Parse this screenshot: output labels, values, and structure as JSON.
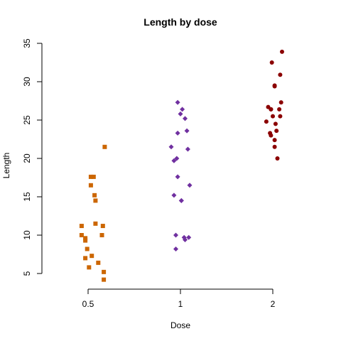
{
  "chart_data": {
    "type": "scatter",
    "title": "Length by dose",
    "xlabel": "Dose",
    "ylabel": "Length",
    "categories": [
      "0.5",
      "1",
      "2"
    ],
    "xlim": [
      0.5,
      3.5
    ],
    "ylim": [
      5,
      35
    ],
    "yticks": [
      5,
      10,
      15,
      20,
      25,
      30,
      35
    ],
    "grid": false,
    "legend": "none",
    "series": [
      {
        "category": "0.5",
        "color": "#CC6600",
        "marker": "square",
        "points": [
          {
            "x": 0.93,
            "y": 11.2
          },
          {
            "x": 1.18,
            "y": 21.5
          },
          {
            "x": 0.97,
            "y": 9.6
          },
          {
            "x": 1.17,
            "y": 4.2
          },
          {
            "x": 0.97,
            "y": 9.3
          },
          {
            "x": 1.11,
            "y": 6.4
          },
          {
            "x": 1.04,
            "y": 7.3
          },
          {
            "x": 1.01,
            "y": 5.8
          },
          {
            "x": 1.16,
            "y": 11.2
          },
          {
            "x": 1.15,
            "y": 10.0
          },
          {
            "x": 1.08,
            "y": 14.5
          },
          {
            "x": 0.93,
            "y": 10.0
          },
          {
            "x": 0.99,
            "y": 8.2
          },
          {
            "x": 1.03,
            "y": 17.6
          },
          {
            "x": 1.03,
            "y": 16.5
          },
          {
            "x": 1.07,
            "y": 15.2
          },
          {
            "x": 1.08,
            "y": 11.5
          },
          {
            "x": 1.06,
            "y": 17.6
          },
          {
            "x": 0.97,
            "y": 7.0
          },
          {
            "x": 1.17,
            "y": 5.2
          }
        ]
      },
      {
        "category": "1",
        "color": "#7030A0",
        "marker": "diamond",
        "points": [
          {
            "x": 1.93,
            "y": 15.2
          },
          {
            "x": 1.9,
            "y": 21.5
          },
          {
            "x": 1.97,
            "y": 17.6
          },
          {
            "x": 2.09,
            "y": 9.7
          },
          {
            "x": 2.01,
            "y": 14.5
          },
          {
            "x": 1.95,
            "y": 10.0
          },
          {
            "x": 1.95,
            "y": 8.2
          },
          {
            "x": 2.05,
            "y": 9.4
          },
          {
            "x": 2.1,
            "y": 16.5
          },
          {
            "x": 2.04,
            "y": 9.7
          },
          {
            "x": 1.93,
            "y": 19.7
          },
          {
            "x": 1.97,
            "y": 23.3
          },
          {
            "x": 2.07,
            "y": 23.6
          },
          {
            "x": 2.02,
            "y": 26.4
          },
          {
            "x": 1.96,
            "y": 20.0
          },
          {
            "x": 2.05,
            "y": 25.2
          },
          {
            "x": 2.0,
            "y": 25.8
          },
          {
            "x": 2.08,
            "y": 21.2
          },
          {
            "x": 2.01,
            "y": 14.5
          },
          {
            "x": 1.97,
            "y": 27.3
          }
        ]
      },
      {
        "category": "2",
        "color": "#8B0000",
        "marker": "circle",
        "points": [
          {
            "x": 3.08,
            "y": 25.5
          },
          {
            "x": 2.98,
            "y": 26.4
          },
          {
            "x": 3.02,
            "y": 22.4
          },
          {
            "x": 3.03,
            "y": 24.5
          },
          {
            "x": 2.93,
            "y": 24.8
          },
          {
            "x": 3.08,
            "y": 30.9
          },
          {
            "x": 3.07,
            "y": 26.4
          },
          {
            "x": 3.09,
            "y": 27.3
          },
          {
            "x": 3.02,
            "y": 29.4
          },
          {
            "x": 2.98,
            "y": 23.0
          },
          {
            "x": 3.04,
            "y": 23.6
          },
          {
            "x": 2.98,
            "y": 26.4
          },
          {
            "x": 3.05,
            "y": 20.0
          },
          {
            "x": 3.1,
            "y": 33.9
          },
          {
            "x": 2.99,
            "y": 32.5
          },
          {
            "x": 2.95,
            "y": 26.7
          },
          {
            "x": 3.02,
            "y": 21.5
          },
          {
            "x": 2.97,
            "y": 23.3
          },
          {
            "x": 3.02,
            "y": 29.5
          },
          {
            "x": 3.0,
            "y": 25.5
          }
        ]
      }
    ]
  }
}
